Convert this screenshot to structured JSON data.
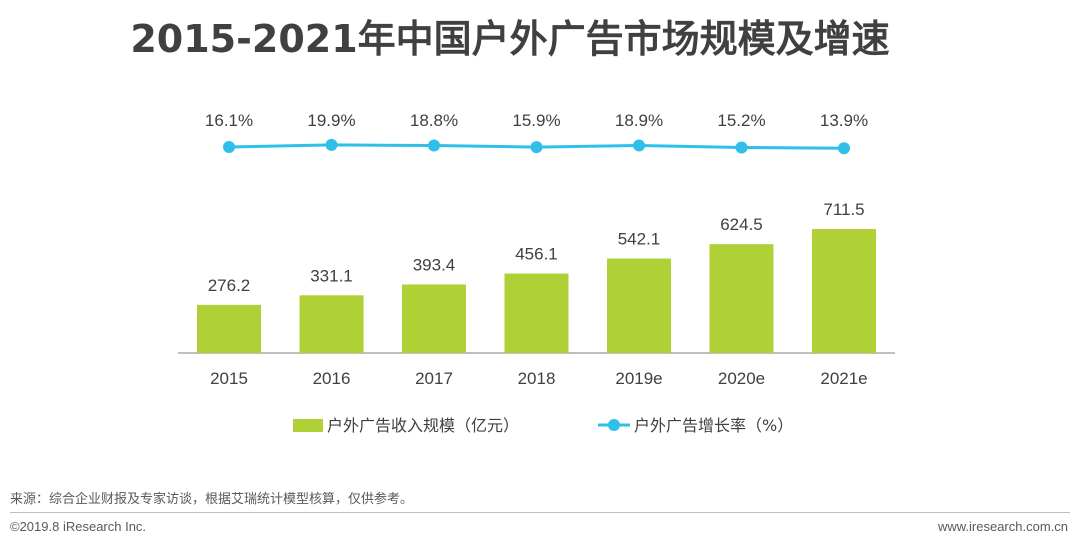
{
  "title": "2015-2021年中国户外广告市场规模及增速",
  "chart_data": {
    "type": "bar+line",
    "title": "2015-2021年中国户外广告市场规模及增速",
    "categories": [
      "2015",
      "2016",
      "2017",
      "2018",
      "2019e",
      "2020e",
      "2021e"
    ],
    "series": [
      {
        "name": "户外广告收入规模（亿元）",
        "type": "bar",
        "color": "#b0d136",
        "values": [
          276.2,
          331.1,
          393.4,
          456.1,
          542.1,
          624.5,
          711.5
        ],
        "labels": [
          "276.2",
          "331.1",
          "393.4",
          "456.1",
          "542.1",
          "624.5",
          "711.5"
        ]
      },
      {
        "name": "户外广告增长率（%）",
        "type": "line",
        "color": "#2fbfe8",
        "values": [
          16.1,
          19.9,
          18.8,
          15.9,
          18.9,
          15.2,
          13.9
        ],
        "labels": [
          "16.1%",
          "19.9%",
          "18.8%",
          "15.9%",
          "18.9%",
          "15.2%",
          "13.9%"
        ]
      }
    ],
    "legend": {
      "position": "bottom"
    }
  },
  "footer": {
    "source": "来源：综合企业财报及专家访谈，根据艾瑞统计模型核算，仅供参考。",
    "copyright": "©2019.8 iResearch Inc.",
    "website": "www.iresearch.com.cn"
  }
}
